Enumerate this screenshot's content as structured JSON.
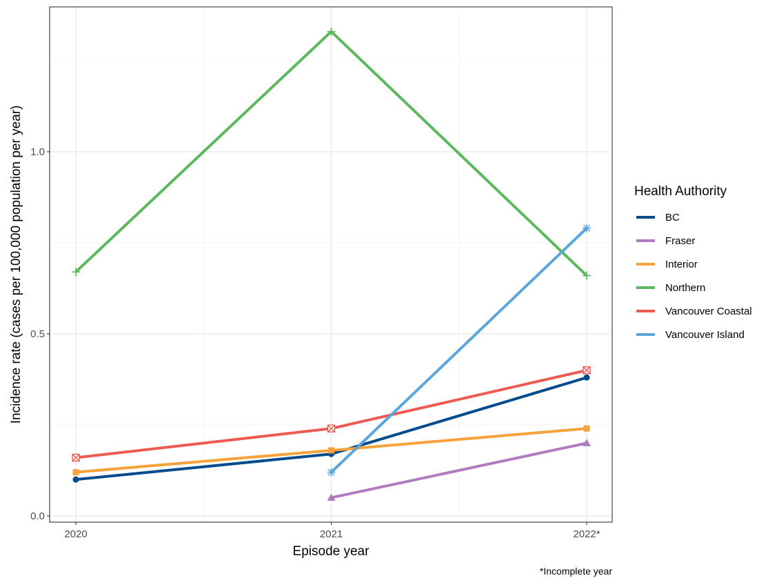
{
  "chart_data": {
    "type": "line",
    "x": [
      "2020",
      "2021",
      "2022*"
    ],
    "xlabel": "Episode year",
    "ylabel": "Incidence rate (cases per 100,000 population per year)",
    "ylim": [
      0,
      1.33
    ],
    "yticks": [
      0.0,
      0.5,
      1.0
    ],
    "ytick_labels": [
      "0.0",
      "0.5",
      "1.0"
    ],
    "grid": true,
    "legend": {
      "title": "Health Authority",
      "placement": "right"
    },
    "caption": "*Incomplete year",
    "series": [
      {
        "name": "BC",
        "color": "#004B8D",
        "marker": "circle",
        "values": [
          0.1,
          0.17,
          0.38
        ]
      },
      {
        "name": "Fraser",
        "color": "#B27AC0",
        "marker": "triangle",
        "values": [
          null,
          0.05,
          0.2
        ]
      },
      {
        "name": "Interior",
        "color": "#F8A23B",
        "marker": "square",
        "values": [
          0.12,
          0.18,
          0.24
        ]
      },
      {
        "name": "Northern",
        "color": "#5CB85C",
        "marker": "plus",
        "values": [
          0.67,
          1.33,
          0.66
        ]
      },
      {
        "name": "Vancouver Coastal",
        "color": "#EE5A52",
        "marker": "square-x",
        "values": [
          0.16,
          0.24,
          0.4
        ]
      },
      {
        "name": "Vancouver Island",
        "color": "#5AA5DC",
        "marker": "star",
        "values": [
          null,
          0.12,
          0.79
        ]
      }
    ]
  }
}
